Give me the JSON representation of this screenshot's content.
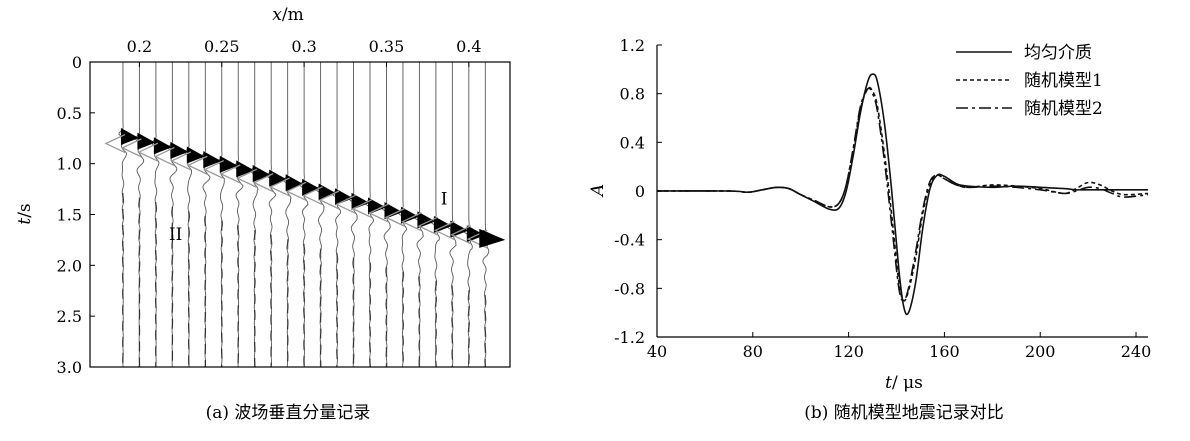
{
  "chart_data": [
    {
      "type": "seismic-section",
      "caption": "(a) 波场垂直分量记录",
      "xlabel_var": "x",
      "xlabel_unit": "/m",
      "ylabel_var": "t",
      "ylabel_unit": "/s",
      "xlim": [
        0.17,
        0.425
      ],
      "ylim": [
        0,
        3.0
      ],
      "x_ticks": [
        "0.2",
        "0.25",
        "0.3",
        "0.35",
        "0.4"
      ],
      "x_tick_values": [
        0.2,
        0.25,
        0.3,
        0.35,
        0.4
      ],
      "y_ticks": [
        "0",
        "0.5",
        "1.0",
        "1.5",
        "2.0",
        "2.5",
        "3.0"
      ],
      "y_tick_values": [
        0,
        0.5,
        1.0,
        1.5,
        2.0,
        2.5,
        3.0
      ],
      "trace_x": [
        0.19,
        0.2,
        0.21,
        0.22,
        0.23,
        0.24,
        0.25,
        0.26,
        0.27,
        0.28,
        0.29,
        0.3,
        0.31,
        0.32,
        0.33,
        0.34,
        0.35,
        0.36,
        0.37,
        0.38,
        0.39,
        0.4,
        0.41
      ],
      "event_I": {
        "label": "I",
        "x": [
          0.195,
          0.41
        ],
        "t": [
          0.76,
          1.74
        ]
      },
      "event_II": {
        "label": "II",
        "x": [
          0.19,
          0.41
        ],
        "t": [
          0.92,
          1.86
        ]
      },
      "label_I_pos": {
        "x": 0.385,
        "t": 1.4
      },
      "label_II_pos": {
        "x": 0.222,
        "t": 1.75
      }
    },
    {
      "type": "line",
      "caption": "(b) 随机模型地震记录对比",
      "xlabel_var": "t",
      "xlabel_unit": "/ μs",
      "ylabel_var": "A",
      "xlim": [
        40,
        245
      ],
      "ylim": [
        -1.2,
        1.2
      ],
      "x_ticks": [
        "40",
        "80",
        "120",
        "160",
        "200",
        "240"
      ],
      "x_tick_values": [
        40,
        80,
        120,
        160,
        200,
        240
      ],
      "y_ticks": [
        "1.2",
        "0.8",
        "0.4",
        "0",
        "-0.4",
        "-0.8",
        "-1.2"
      ],
      "y_tick_values": [
        1.2,
        0.8,
        0.4,
        0,
        -0.4,
        -0.8,
        -1.2
      ],
      "legend_position": "top-right",
      "series": [
        {
          "name": "均匀介质",
          "style": "solid",
          "x": [
            40,
            70,
            78,
            84,
            90,
            95,
            100,
            106,
            112,
            116,
            119,
            122,
            125,
            128,
            130,
            132,
            135,
            138,
            141,
            143,
            145,
            148,
            151,
            154,
            157,
            160,
            165,
            170,
            180,
            190,
            200,
            210,
            215,
            220,
            225,
            230,
            235,
            245
          ],
          "y": [
            0,
            0,
            -0.01,
            0.01,
            0.03,
            0.02,
            -0.03,
            -0.09,
            -0.15,
            -0.14,
            0.0,
            0.3,
            0.65,
            0.9,
            0.96,
            0.9,
            0.55,
            0.0,
            -0.65,
            -0.95,
            -1.0,
            -0.75,
            -0.3,
            0.02,
            0.13,
            0.12,
            0.06,
            0.04,
            0.03,
            0.04,
            0.03,
            0.02,
            0.01,
            0.01,
            0.01,
            0.01,
            0.01,
            0.01
          ]
        },
        {
          "name": "随机模型1",
          "style": "dashed",
          "x": [
            40,
            70,
            78,
            84,
            90,
            95,
            100,
            106,
            112,
            116,
            119,
            122,
            125,
            128,
            130,
            132,
            135,
            138,
            141,
            143,
            145,
            148,
            151,
            154,
            157,
            160,
            165,
            170,
            180,
            190,
            200,
            210,
            215,
            220,
            225,
            230,
            235,
            245
          ],
          "y": [
            0,
            0,
            -0.01,
            0.01,
            0.03,
            0.02,
            -0.03,
            -0.08,
            -0.13,
            -0.1,
            0.05,
            0.35,
            0.68,
            0.84,
            0.82,
            0.7,
            0.3,
            -0.2,
            -0.75,
            -0.9,
            -0.82,
            -0.55,
            -0.18,
            0.06,
            0.13,
            0.1,
            0.05,
            0.03,
            0.05,
            0.04,
            0.02,
            -0.02,
            0.02,
            0.07,
            0.05,
            0.0,
            -0.03,
            -0.02
          ]
        },
        {
          "name": "随机模型2",
          "style": "dashdot",
          "x": [
            40,
            70,
            78,
            84,
            90,
            95,
            100,
            106,
            112,
            116,
            119,
            122,
            125,
            128,
            130,
            132,
            135,
            138,
            141,
            143,
            145,
            148,
            151,
            154,
            157,
            160,
            165,
            170,
            180,
            190,
            200,
            210,
            215,
            220,
            225,
            230,
            235,
            245
          ],
          "y": [
            0,
            0,
            -0.01,
            0.01,
            0.03,
            0.02,
            -0.03,
            -0.08,
            -0.13,
            -0.1,
            0.05,
            0.36,
            0.7,
            0.84,
            0.8,
            0.66,
            0.24,
            -0.28,
            -0.8,
            -0.9,
            -0.8,
            -0.5,
            -0.15,
            0.08,
            0.13,
            0.1,
            0.05,
            0.03,
            0.04,
            0.03,
            0.01,
            -0.02,
            0.0,
            0.03,
            0.02,
            -0.02,
            -0.05,
            -0.03
          ]
        }
      ]
    }
  ]
}
